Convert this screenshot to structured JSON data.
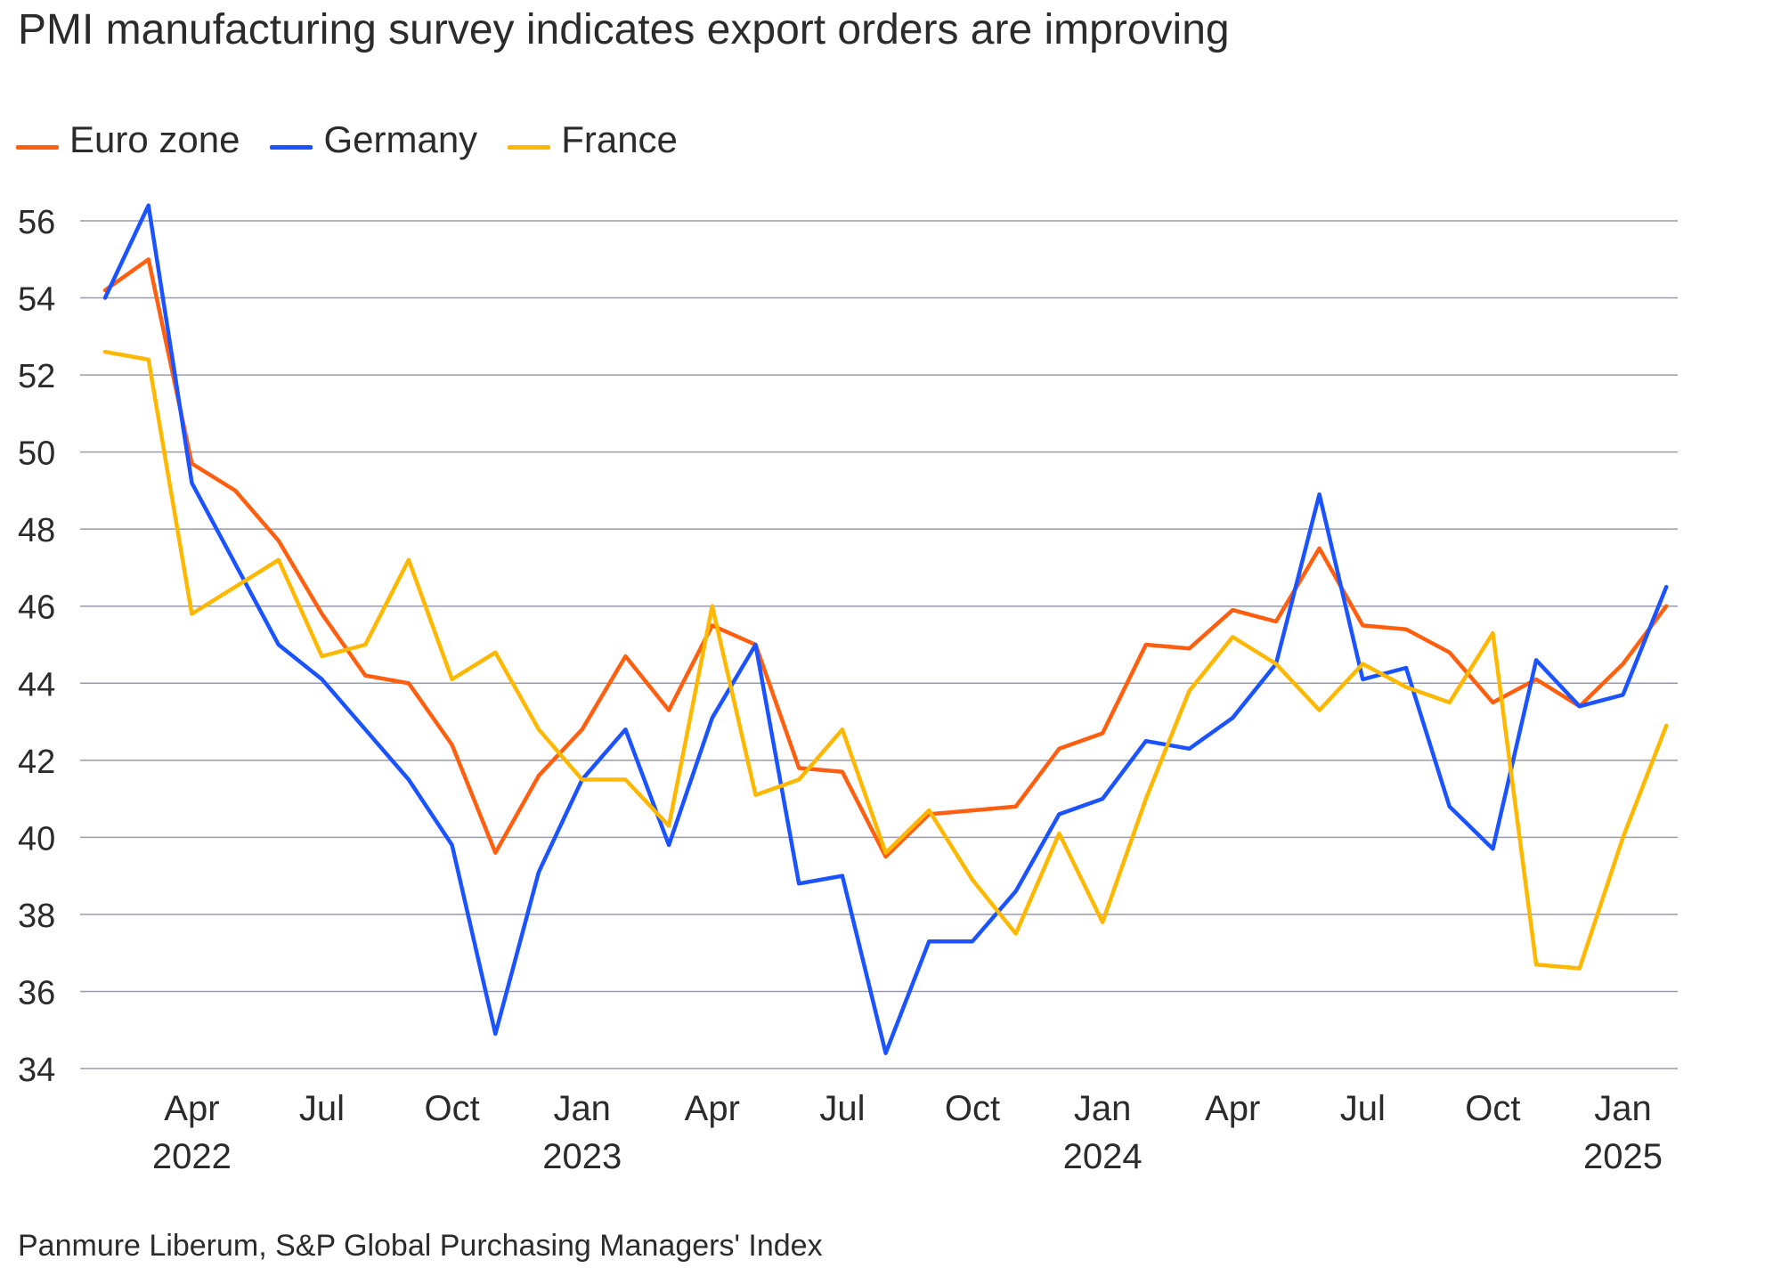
{
  "chart_data": {
    "type": "line",
    "title": "PMI manufacturing survey indicates export orders are improving",
    "xlabel": "",
    "ylabel": "",
    "ylim": [
      34,
      56
    ],
    "yticks": [
      34,
      36,
      38,
      40,
      42,
      44,
      46,
      48,
      50,
      52,
      54,
      56
    ],
    "grid": true,
    "legend_position": "top-left",
    "x": [
      "2022-02",
      "2022-03",
      "2022-04",
      "2022-05",
      "2022-06",
      "2022-07",
      "2022-08",
      "2022-09",
      "2022-10",
      "2022-11",
      "2022-12",
      "2023-01",
      "2023-02",
      "2023-03",
      "2023-04",
      "2023-05",
      "2023-06",
      "2023-07",
      "2023-08",
      "2023-09",
      "2023-10",
      "2023-11",
      "2023-12",
      "2024-01",
      "2024-02",
      "2024-03",
      "2024-04",
      "2024-05",
      "2024-06",
      "2024-07",
      "2024-08",
      "2024-09",
      "2024-10",
      "2024-11",
      "2024-12",
      "2025-01",
      "2025-02"
    ],
    "x_tick_labels": [
      {
        "x": "2022-04",
        "month": "Apr",
        "year": "2022"
      },
      {
        "x": "2022-07",
        "month": "Jul",
        "year": ""
      },
      {
        "x": "2022-10",
        "month": "Oct",
        "year": ""
      },
      {
        "x": "2023-01",
        "month": "Jan",
        "year": "2023"
      },
      {
        "x": "2023-04",
        "month": "Apr",
        "year": ""
      },
      {
        "x": "2023-07",
        "month": "Jul",
        "year": ""
      },
      {
        "x": "2023-10",
        "month": "Oct",
        "year": ""
      },
      {
        "x": "2024-01",
        "month": "Jan",
        "year": "2024"
      },
      {
        "x": "2024-04",
        "month": "Apr",
        "year": ""
      },
      {
        "x": "2024-07",
        "month": "Jul",
        "year": ""
      },
      {
        "x": "2024-10",
        "month": "Oct",
        "year": ""
      },
      {
        "x": "2025-01",
        "month": "Jan",
        "year": "2025"
      }
    ],
    "series": [
      {
        "name": "Euro zone",
        "color": "#ff5f0f",
        "values": [
          54.2,
          55.0,
          49.7,
          49.0,
          47.7,
          45.8,
          44.2,
          44.0,
          42.4,
          39.6,
          41.6,
          42.8,
          44.7,
          43.3,
          45.5,
          45.0,
          41.8,
          41.7,
          39.5,
          40.6,
          40.7,
          40.8,
          42.3,
          42.7,
          45.0,
          44.9,
          45.9,
          45.6,
          47.5,
          45.5,
          45.4,
          44.8,
          43.5,
          44.1,
          43.4,
          44.5,
          46.0
        ]
      },
      {
        "name": "Germany",
        "color": "#1a53ff",
        "values": [
          54.0,
          56.4,
          49.2,
          47.1,
          45.0,
          44.1,
          42.8,
          41.5,
          39.8,
          34.9,
          39.1,
          41.5,
          42.8,
          39.8,
          43.1,
          45.0,
          38.8,
          39.0,
          34.4,
          37.3,
          37.3,
          38.6,
          40.6,
          41.0,
          42.5,
          42.3,
          43.1,
          44.5,
          48.9,
          44.1,
          44.4,
          40.8,
          39.7,
          44.6,
          43.4,
          43.7,
          46.5
        ]
      },
      {
        "name": "France",
        "color": "#ffb800",
        "values": [
          52.6,
          52.4,
          45.8,
          46.5,
          47.2,
          44.7,
          45.0,
          47.2,
          44.1,
          44.8,
          42.8,
          41.5,
          41.5,
          40.3,
          46.0,
          41.1,
          41.5,
          42.8,
          39.6,
          40.7,
          38.9,
          37.5,
          40.1,
          37.8,
          41.0,
          43.8,
          45.2,
          44.5,
          43.3,
          44.5,
          43.9,
          43.5,
          45.3,
          36.7,
          36.6,
          40.0,
          42.9
        ]
      }
    ]
  },
  "source": "Panmure Liberum, S&P Global Purchasing Managers' Index"
}
